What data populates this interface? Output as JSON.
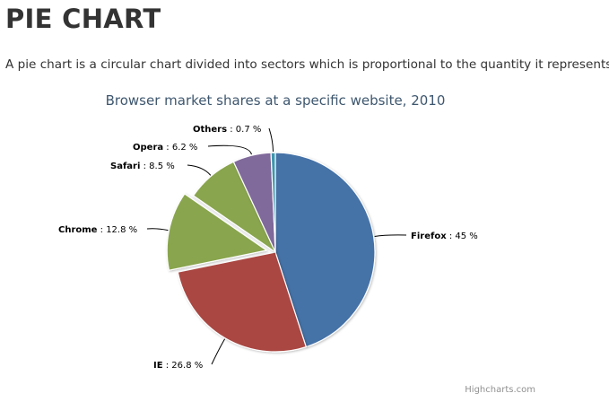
{
  "page": {
    "title": "PIE CHART",
    "description": "A pie chart is a circular chart divided into sectors which is proportional to the quantity it represents."
  },
  "credits": "Highcharts.com",
  "chart_data": {
    "type": "pie",
    "title": "Browser market shares at a specific website, 2010",
    "value_suffix": " %",
    "slices": [
      {
        "name": "Firefox",
        "value": 45.0,
        "display": "45",
        "color": "#4572a7",
        "sliced": false
      },
      {
        "name": "IE",
        "value": 26.8,
        "display": "26.8",
        "color": "#aa4643",
        "sliced": false
      },
      {
        "name": "Chrome",
        "value": 12.8,
        "display": "12.8",
        "color": "#89a54e",
        "sliced": true
      },
      {
        "name": "Safari",
        "value": 8.5,
        "display": "8.5",
        "color": "#89a54e",
        "sliced": false
      },
      {
        "name": "Opera",
        "value": 6.2,
        "display": "6.2",
        "color": "#80699b",
        "sliced": false
      },
      {
        "name": "Others",
        "value": 0.7,
        "display": "0.7",
        "color": "#3d96ae",
        "sliced": false
      }
    ]
  }
}
